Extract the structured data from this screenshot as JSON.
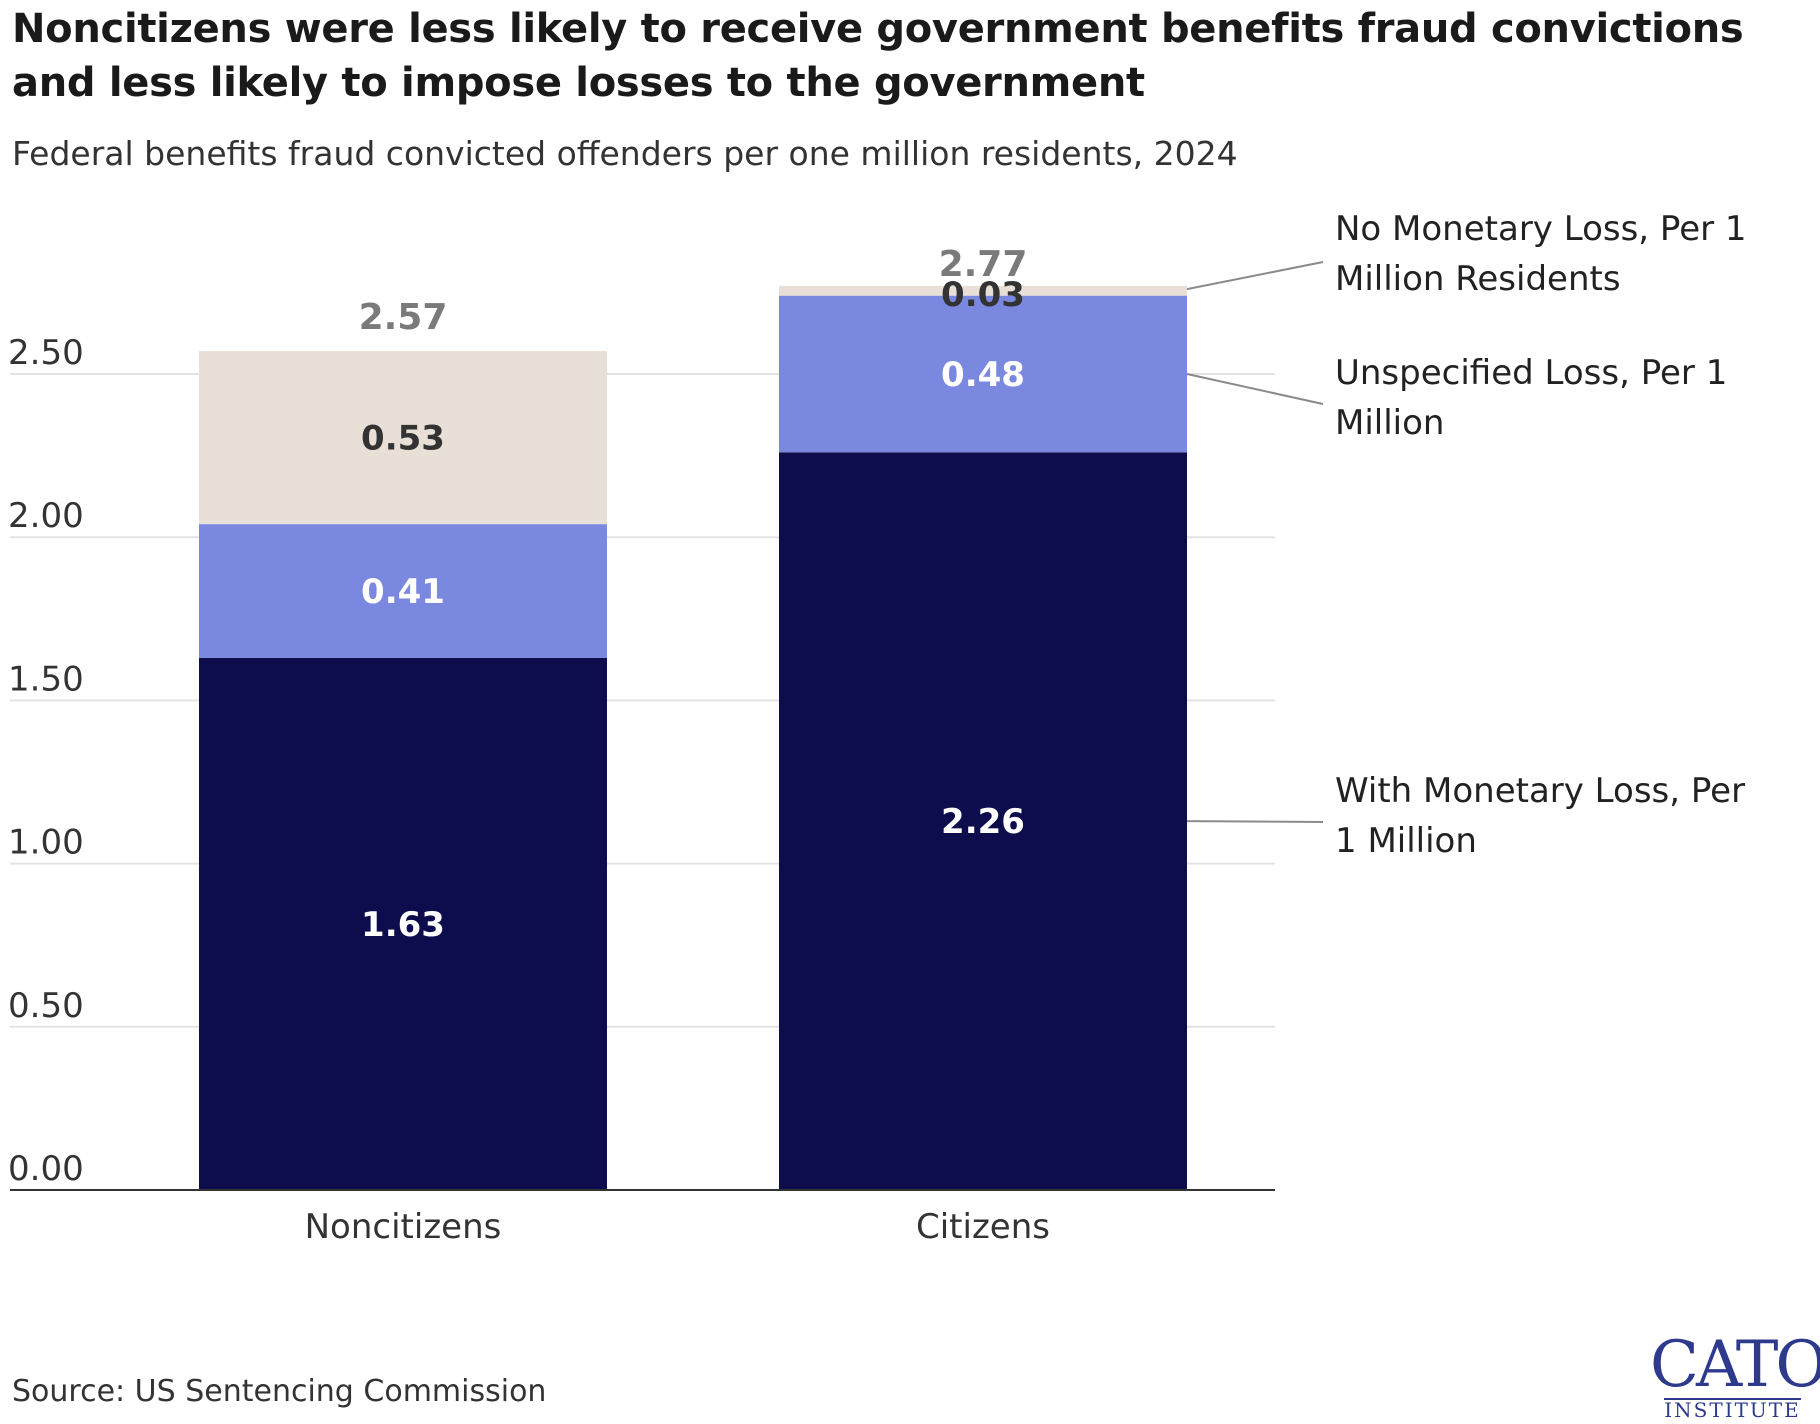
{
  "header": {
    "title": "Noncitizens were less likely to receive government benefits fraud convictions and less likely to impose losses to the government",
    "subtitle": "Federal benefits fraud convicted offenders per one million residents, 2024"
  },
  "footer": {
    "source": "Source: US Sentencing Commission",
    "logo_word": "CATO",
    "logo_sub": "INSTITUTE"
  },
  "colors": {
    "with_loss": "#0d0d4d",
    "unspecified": "#7a88e0",
    "no_loss": "#e8dfd6",
    "grid": "#e3e3e3",
    "axis": "#333333",
    "total": "#7a7a7a"
  },
  "chart_data": {
    "type": "bar",
    "stacked": true,
    "title": "Noncitizens were less likely to receive government benefits fraud convictions and less likely to impose losses to the government",
    "subtitle": "Federal benefits fraud convicted offenders per one million residents, 2024",
    "xlabel": "",
    "ylabel": "",
    "categories": [
      "Noncitizens",
      "Citizens"
    ],
    "ylim": [
      0,
      2.77
    ],
    "yticks": [
      0,
      0.5,
      1,
      1.5,
      2,
      2.5
    ],
    "ytick_labels": [
      "0.00",
      "0.50",
      "1.00",
      "1.50",
      "2.00",
      "2.50"
    ],
    "grid": true,
    "series": [
      {
        "name": "With Monetary Loss, Per 1 Million",
        "values": [
          1.63,
          2.26
        ],
        "labels": [
          "1.63",
          "2.26"
        ]
      },
      {
        "name": "Unspecified Loss, Per 1 Million",
        "values": [
          0.41,
          0.48
        ],
        "labels": [
          "0.41",
          "0.48"
        ]
      },
      {
        "name": "No Monetary Loss, Per 1 Million Residents",
        "values": [
          0.53,
          0.03
        ],
        "labels": [
          "0.53",
          "0.03"
        ]
      }
    ],
    "totals": [
      2.57,
      2.77
    ],
    "total_labels": [
      "2.57",
      "2.77"
    ],
    "legend_placement": "right, direct labels"
  }
}
